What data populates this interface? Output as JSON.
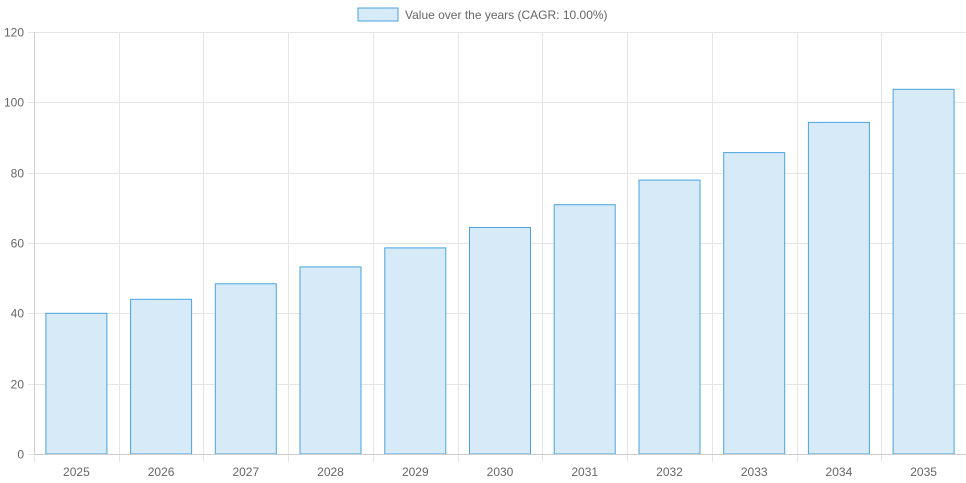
{
  "chart_data": {
    "type": "bar",
    "categories": [
      "2025",
      "2026",
      "2027",
      "2028",
      "2029",
      "2030",
      "2031",
      "2032",
      "2033",
      "2034",
      "2035"
    ],
    "series": [
      {
        "name": "Value over the years (CAGR: 10.00%)",
        "values": [
          40,
          44,
          48.4,
          53.2,
          58.6,
          64.4,
          70.9,
          77.9,
          85.7,
          94.3,
          103.7
        ]
      }
    ],
    "ylim": [
      0,
      120
    ],
    "yticks": [
      "0",
      "20",
      "40",
      "60",
      "80",
      "100",
      "120"
    ],
    "grid": true,
    "legend_position": "top-center",
    "colors": {
      "bar_fill": "#d6eaf8",
      "bar_stroke": "#4aa3df",
      "grid": "#e5e5e5",
      "axis": "#cccccc",
      "text": "#666666"
    }
  }
}
